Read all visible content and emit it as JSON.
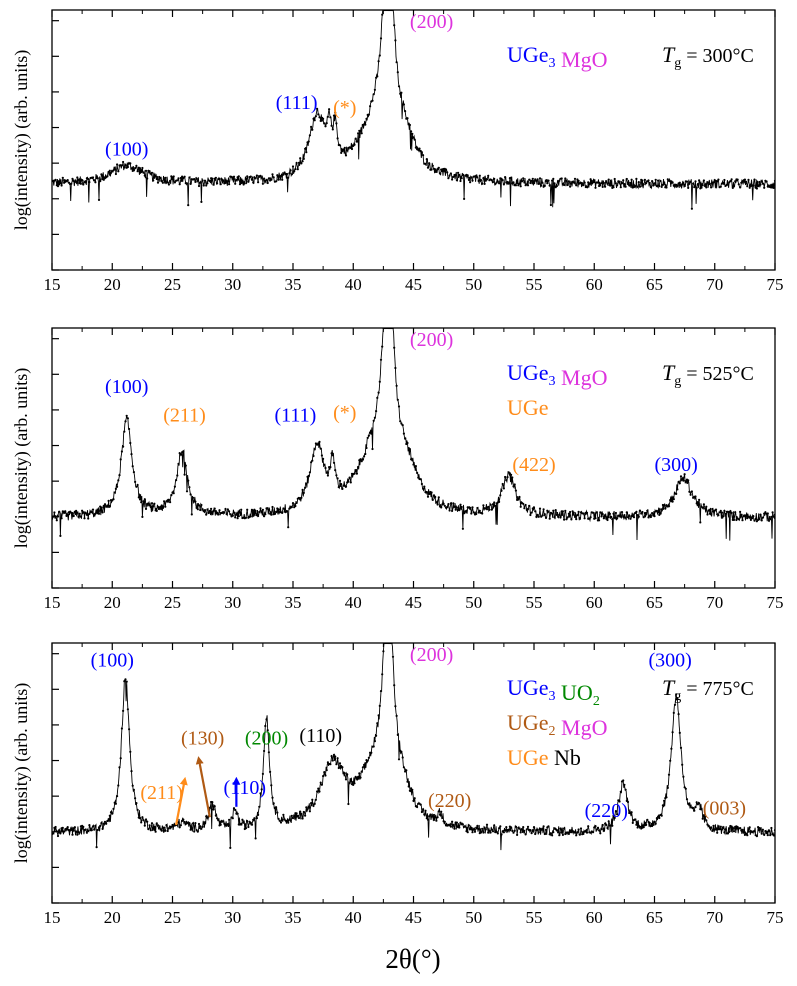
{
  "chart_data": {
    "type": "scatter",
    "xlabel": "2θ(°)",
    "ylabel": "log(intensity) (arb. units)",
    "xlim": [
      15,
      75
    ],
    "xticks": [
      15,
      20,
      25,
      30,
      35,
      40,
      45,
      50,
      55,
      60,
      65,
      70,
      75
    ],
    "grid": false,
    "colors": {
      "UGe3": "#0000ff",
      "MgO": "#dd33dd",
      "UGe": "#ff8c1a",
      "UGe2": "#b05a14",
      "UO2": "#008800",
      "Nb": "#000000",
      "data": "#000000"
    },
    "panels": [
      {
        "temperature_label": "T",
        "temperature_sub": "g",
        "temperature_value": " = 300°C",
        "legend": [
          [
            {
              "text": "UGe",
              "sub": "3",
              "color": "UGe3"
            },
            {
              "text": "MgO",
              "sub": "",
              "color": "MgO"
            }
          ]
        ],
        "baseline": 0.33,
        "noise": 0.018,
        "peaks": [
          {
            "x": 21.2,
            "h": 0.07,
            "w": 1.6,
            "label": "(100)",
            "color": "UGe3",
            "lx": 21.2,
            "ly": 0.44
          },
          {
            "x": 37.0,
            "h": 0.24,
            "w": 0.8,
            "label": "(111)",
            "color": "UGe3",
            "lx": 35.3,
            "ly": 0.62
          },
          {
            "x": 38.0,
            "h": 0.11,
            "w": 0.2
          },
          {
            "x": 38.5,
            "h": 0.13,
            "w": 0.22,
            "label": "(*)",
            "color": "UGe",
            "lx": 39.3,
            "ly": 0.6
          },
          {
            "x": 42.9,
            "h": 0.95,
            "w": 0.45,
            "label": "(200)",
            "color": "MgO",
            "lx": 46.5,
            "ly": 0.93
          },
          {
            "x": 41.8,
            "h": 0.2,
            "w": 1.8
          },
          {
            "x": 44.2,
            "h": 0.12,
            "w": 1.2
          }
        ]
      },
      {
        "temperature_label": "T",
        "temperature_sub": "g",
        "temperature_value": " = 525°C",
        "legend": [
          [
            {
              "text": "UGe",
              "sub": "3",
              "color": "UGe3"
            },
            {
              "text": "MgO",
              "sub": "",
              "color": "MgO"
            }
          ],
          [
            {
              "text": "UGe",
              "sub": "",
              "color": "UGe"
            }
          ]
        ],
        "baseline": 0.27,
        "noise": 0.018,
        "peaks": [
          {
            "x": 21.2,
            "h": 0.37,
            "w": 0.55,
            "label": "(100)",
            "color": "UGe3",
            "lx": 21.2,
            "ly": 0.75
          },
          {
            "x": 25.8,
            "h": 0.25,
            "w": 0.55,
            "label": "(211)",
            "color": "UGe",
            "lx": 26.0,
            "ly": 0.64
          },
          {
            "x": 37.0,
            "h": 0.25,
            "w": 0.7,
            "label": "(111)",
            "color": "UGe3",
            "lx": 35.2,
            "ly": 0.64
          },
          {
            "x": 38.3,
            "h": 0.13,
            "w": 0.22,
            "label": "(*)",
            "color": "UGe",
            "lx": 39.3,
            "ly": 0.65
          },
          {
            "x": 42.9,
            "h": 0.95,
            "w": 0.45,
            "label": "(200)",
            "color": "MgO",
            "lx": 46.5,
            "ly": 0.93
          },
          {
            "x": 41.8,
            "h": 0.22,
            "w": 1.8
          },
          {
            "x": 44.3,
            "h": 0.14,
            "w": 1.3
          },
          {
            "x": 52.9,
            "h": 0.15,
            "w": 0.7,
            "label": "(422)",
            "color": "UGe",
            "lx": 55.0,
            "ly": 0.45
          },
          {
            "x": 67.4,
            "h": 0.15,
            "w": 0.9,
            "label": "(300)",
            "color": "UGe3",
            "lx": 66.8,
            "ly": 0.45
          }
        ]
      },
      {
        "temperature_label": "T",
        "temperature_sub": "g",
        "temperature_value": " = 775°C",
        "legend": [
          [
            {
              "text": "UGe",
              "sub": "3",
              "color": "UGe3"
            },
            {
              "text": "UO",
              "sub": "2",
              "color": "UO2"
            }
          ],
          [
            {
              "text": "UGe",
              "sub": "2",
              "color": "UGe2"
            },
            {
              "text": "MgO",
              "sub": "",
              "color": "MgO"
            }
          ],
          [
            {
              "text": "UGe",
              "sub": "",
              "color": "UGe"
            },
            {
              "text": "Nb",
              "sub": "",
              "color": "Nb"
            }
          ]
        ],
        "baseline": 0.27,
        "noise": 0.018,
        "peaks": [
          {
            "x": 21.1,
            "h": 0.6,
            "w": 0.4,
            "label": "(100)",
            "color": "UGe3",
            "lx": 20.0,
            "ly": 0.91
          },
          {
            "x": 28.3,
            "h": 0.1,
            "w": 0.35,
            "label": "(130)",
            "color": "UGe2",
            "lx": 27.5,
            "ly": 0.61,
            "arrow": [
              28.1,
              0.33,
              27.2,
              0.55
            ]
          },
          {
            "x": 25.8,
            "h": 0.03,
            "w": 0.5,
            "label": "(211)",
            "color": "UGe",
            "lx": 24.1,
            "ly": 0.4,
            "arrow": [
              25.3,
              0.3,
              26.0,
              0.47
            ]
          },
          {
            "x": 30.2,
            "h": 0.08,
            "w": 0.2,
            "label": "(110)",
            "color": "UGe3",
            "lx": 31.0,
            "ly": 0.42,
            "arrow": [
              30.3,
              0.37,
              30.3,
              0.47
            ]
          },
          {
            "x": 32.8,
            "h": 0.43,
            "w": 0.3,
            "label": "(200)",
            "color": "UO2",
            "lx": 32.8,
            "ly": 0.61
          },
          {
            "x": 38.3,
            "h": 0.24,
            "w": 1.3,
            "label": "(110)",
            "color": "Nb",
            "lx": 37.3,
            "ly": 0.62
          },
          {
            "x": 42.9,
            "h": 0.95,
            "w": 0.4,
            "label": "(200)",
            "color": "MgO",
            "lx": 46.5,
            "ly": 0.93
          },
          {
            "x": 41.8,
            "h": 0.2,
            "w": 1.5
          },
          {
            "x": 44.0,
            "h": 0.12,
            "w": 1.0
          },
          {
            "x": 47.2,
            "h": 0.04,
            "w": 0.3,
            "label": "(220)",
            "color": "UGe2",
            "lx": 48.0,
            "ly": 0.37
          },
          {
            "x": 62.4,
            "h": 0.18,
            "w": 0.45,
            "label": "(220)",
            "color": "UGe3",
            "lx": 61.0,
            "ly": 0.33
          },
          {
            "x": 66.8,
            "h": 0.52,
            "w": 0.5,
            "label": "(300)",
            "color": "UGe3",
            "lx": 66.3,
            "ly": 0.91
          },
          {
            "x": 68.7,
            "h": 0.08,
            "w": 0.3,
            "label": "(003)",
            "color": "UGe2",
            "lx": 70.8,
            "ly": 0.34
          }
        ]
      }
    ]
  }
}
